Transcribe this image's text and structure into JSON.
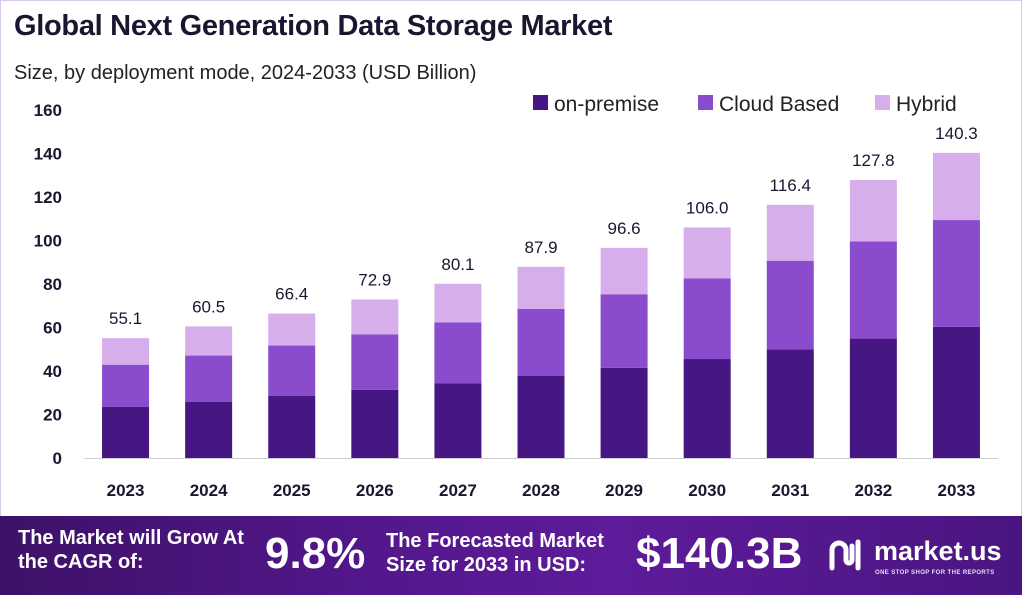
{
  "header": {
    "title": "Global Next Generation Data Storage Market",
    "subtitle": "Size, by deployment mode, 2024-2033 (USD Billion)"
  },
  "chart_data": {
    "type": "bar",
    "stacked": true,
    "categories": [
      "2023",
      "2024",
      "2025",
      "2026",
      "2027",
      "2028",
      "2029",
      "2030",
      "2031",
      "2032",
      "2033"
    ],
    "series": [
      {
        "name": "on-premise",
        "color": "#461782",
        "values": [
          23.6,
          25.9,
          28.5,
          31.3,
          34.4,
          37.7,
          41.5,
          45.5,
          50.0,
          54.9,
          60.3
        ]
      },
      {
        "name": "Cloud Based",
        "color": "#8a4bcc",
        "values": [
          19.3,
          21.2,
          23.2,
          25.5,
          28.0,
          30.8,
          33.8,
          37.1,
          40.7,
          44.7,
          49.1
        ]
      },
      {
        "name": "Hybrid",
        "color": "#d7aeec",
        "values": [
          12.2,
          13.4,
          14.7,
          16.1,
          17.7,
          19.4,
          21.3,
          23.4,
          25.7,
          28.2,
          30.9
        ]
      }
    ],
    "totals": [
      "55.1",
      "60.5",
      "66.4",
      "72.9",
      "80.1",
      "87.9",
      "96.6",
      "106.0",
      "116.4",
      "127.8",
      "140.3"
    ],
    "ylim": [
      0,
      160
    ],
    "yticks": [
      0,
      20,
      40,
      60,
      80,
      100,
      120,
      140,
      160
    ],
    "grid": false,
    "legend_position": "top-right"
  },
  "footer": {
    "grow_label": "The Market will Grow At the CAGR of:",
    "cagr_value": "9.8%",
    "forecast_label": "The Forecasted Market Size for 2033 in USD:",
    "forecast_value": "$140.3B",
    "brand_name": "market.us",
    "brand_tagline": "ONE STOP SHOP FOR THE REPORTS",
    "logo_icon": "market-us-logo-icon"
  }
}
